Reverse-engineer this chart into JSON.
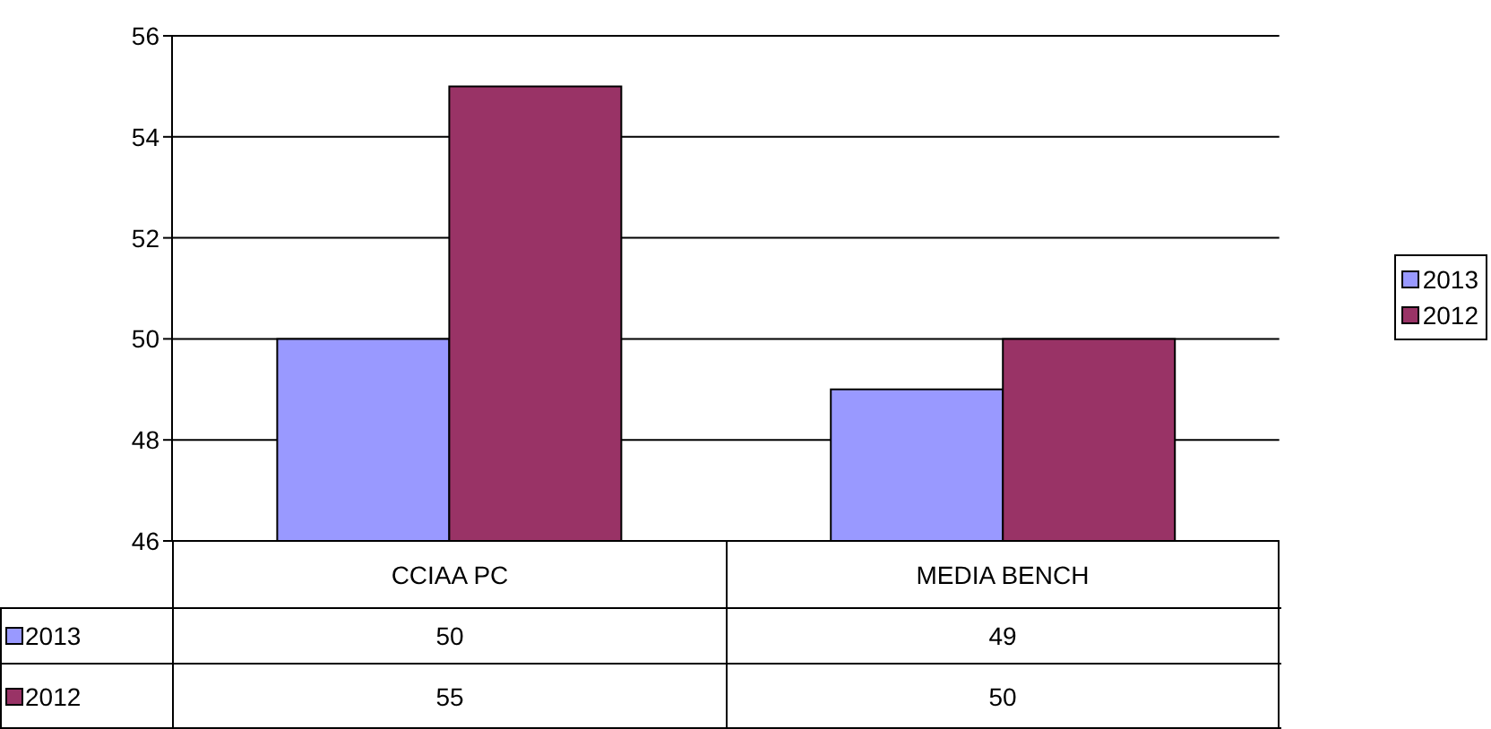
{
  "chart_data": {
    "type": "bar",
    "categories": [
      "CCIAA PC",
      "MEDIA BENCH"
    ],
    "series": [
      {
        "name": "2013",
        "color": "#9999ff",
        "values": [
          50,
          49
        ]
      },
      {
        "name": "2012",
        "color": "#993366",
        "values": [
          55,
          50
        ]
      }
    ],
    "ylim": [
      46,
      56
    ],
    "yticks": [
      46,
      48,
      50,
      52,
      54,
      56
    ],
    "grid": "y",
    "legend": "right",
    "data_labels": true
  }
}
